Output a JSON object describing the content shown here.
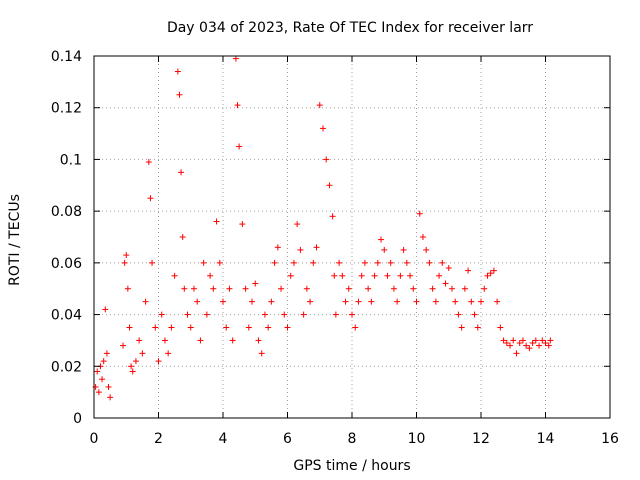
{
  "chart_data": {
    "type": "scatter",
    "title": "Day 034 of 2023, Rate Of TEC Index for receiver larr",
    "xlabel": "GPS time / hours",
    "ylabel": "ROTI / TECUs",
    "xlim": [
      0,
      16
    ],
    "ylim": [
      0,
      0.14
    ],
    "x_ticks": [
      0,
      2,
      4,
      6,
      8,
      10,
      12,
      14,
      16
    ],
    "x_tick_labels": [
      "0",
      "2",
      "4",
      "6",
      "8",
      "10",
      "12",
      "14",
      "16"
    ],
    "y_ticks": [
      0,
      0.02,
      0.04,
      0.06,
      0.08,
      0.1,
      0.12,
      0.14
    ],
    "y_tick_labels": [
      "0",
      "0.02",
      "0.04",
      "0.06",
      "0.08",
      "0.1",
      "0.12",
      "0.14"
    ],
    "grid": true,
    "marker": "+",
    "series": [
      {
        "name": "ROTI",
        "color": "#ff0000",
        "x": [
          0.05,
          0.1,
          0.15,
          0.2,
          0.25,
          0.3,
          0.35,
          0.4,
          0.45,
          0.5,
          0.9,
          0.95,
          1.0,
          1.05,
          1.1,
          1.15,
          1.2,
          1.3,
          1.4,
          1.5,
          1.6,
          1.7,
          1.75,
          1.8,
          1.9,
          2.0,
          2.1,
          2.2,
          2.3,
          2.4,
          2.5,
          2.6,
          2.65,
          2.7,
          2.75,
          2.8,
          2.9,
          3.0,
          3.1,
          3.2,
          3.3,
          3.4,
          3.5,
          3.6,
          3.7,
          3.8,
          3.9,
          4.0,
          4.1,
          4.2,
          4.3,
          4.4,
          4.45,
          4.5,
          4.6,
          4.7,
          4.8,
          4.9,
          5.0,
          5.1,
          5.2,
          5.3,
          5.4,
          5.5,
          5.6,
          5.7,
          5.8,
          5.9,
          6.0,
          6.1,
          6.2,
          6.3,
          6.4,
          6.5,
          6.6,
          6.7,
          6.8,
          6.9,
          7.0,
          7.1,
          7.2,
          7.3,
          7.4,
          7.45,
          7.5,
          7.6,
          7.7,
          7.8,
          7.9,
          8.0,
          8.1,
          8.2,
          8.3,
          8.4,
          8.5,
          8.6,
          8.7,
          8.8,
          8.9,
          9.0,
          9.1,
          9.2,
          9.3,
          9.4,
          9.5,
          9.6,
          9.7,
          9.8,
          9.9,
          10.0,
          10.1,
          10.2,
          10.3,
          10.4,
          10.5,
          10.6,
          10.7,
          10.8,
          10.9,
          11.0,
          11.1,
          11.2,
          11.3,
          11.4,
          11.5,
          11.6,
          11.7,
          11.8,
          11.9,
          12.0,
          12.1,
          12.2,
          12.3,
          12.4,
          12.5,
          12.6,
          12.7,
          12.8,
          12.9,
          13.0,
          13.1,
          13.2,
          13.3,
          13.4,
          13.5,
          13.6,
          13.7,
          13.8,
          13.9,
          14.0,
          14.1,
          14.15
        ],
        "y": [
          0.012,
          0.018,
          0.01,
          0.02,
          0.015,
          0.022,
          0.042,
          0.025,
          0.012,
          0.008,
          0.028,
          0.06,
          0.063,
          0.05,
          0.035,
          0.02,
          0.018,
          0.022,
          0.03,
          0.025,
          0.045,
          0.099,
          0.085,
          0.06,
          0.035,
          0.022,
          0.04,
          0.03,
          0.025,
          0.035,
          0.055,
          0.134,
          0.125,
          0.095,
          0.07,
          0.05,
          0.04,
          0.035,
          0.05,
          0.045,
          0.03,
          0.06,
          0.04,
          0.055,
          0.05,
          0.076,
          0.06,
          0.045,
          0.035,
          0.05,
          0.03,
          0.139,
          0.121,
          0.105,
          0.075,
          0.05,
          0.035,
          0.045,
          0.052,
          0.03,
          0.025,
          0.04,
          0.035,
          0.045,
          0.06,
          0.066,
          0.05,
          0.04,
          0.035,
          0.055,
          0.06,
          0.075,
          0.065,
          0.04,
          0.05,
          0.045,
          0.06,
          0.066,
          0.121,
          0.112,
          0.1,
          0.09,
          0.078,
          0.055,
          0.04,
          0.06,
          0.055,
          0.045,
          0.05,
          0.04,
          0.035,
          0.045,
          0.055,
          0.06,
          0.05,
          0.045,
          0.055,
          0.06,
          0.069,
          0.065,
          0.055,
          0.06,
          0.05,
          0.045,
          0.055,
          0.065,
          0.06,
          0.055,
          0.05,
          0.045,
          0.079,
          0.07,
          0.065,
          0.06,
          0.05,
          0.045,
          0.055,
          0.06,
          0.052,
          0.058,
          0.05,
          0.045,
          0.04,
          0.035,
          0.05,
          0.057,
          0.045,
          0.04,
          0.035,
          0.045,
          0.05,
          0.055,
          0.056,
          0.057,
          0.045,
          0.035,
          0.03,
          0.029,
          0.028,
          0.03,
          0.025,
          0.029,
          0.03,
          0.028,
          0.027,
          0.029,
          0.03,
          0.028,
          0.03,
          0.029,
          0.028,
          0.03
        ]
      }
    ]
  }
}
